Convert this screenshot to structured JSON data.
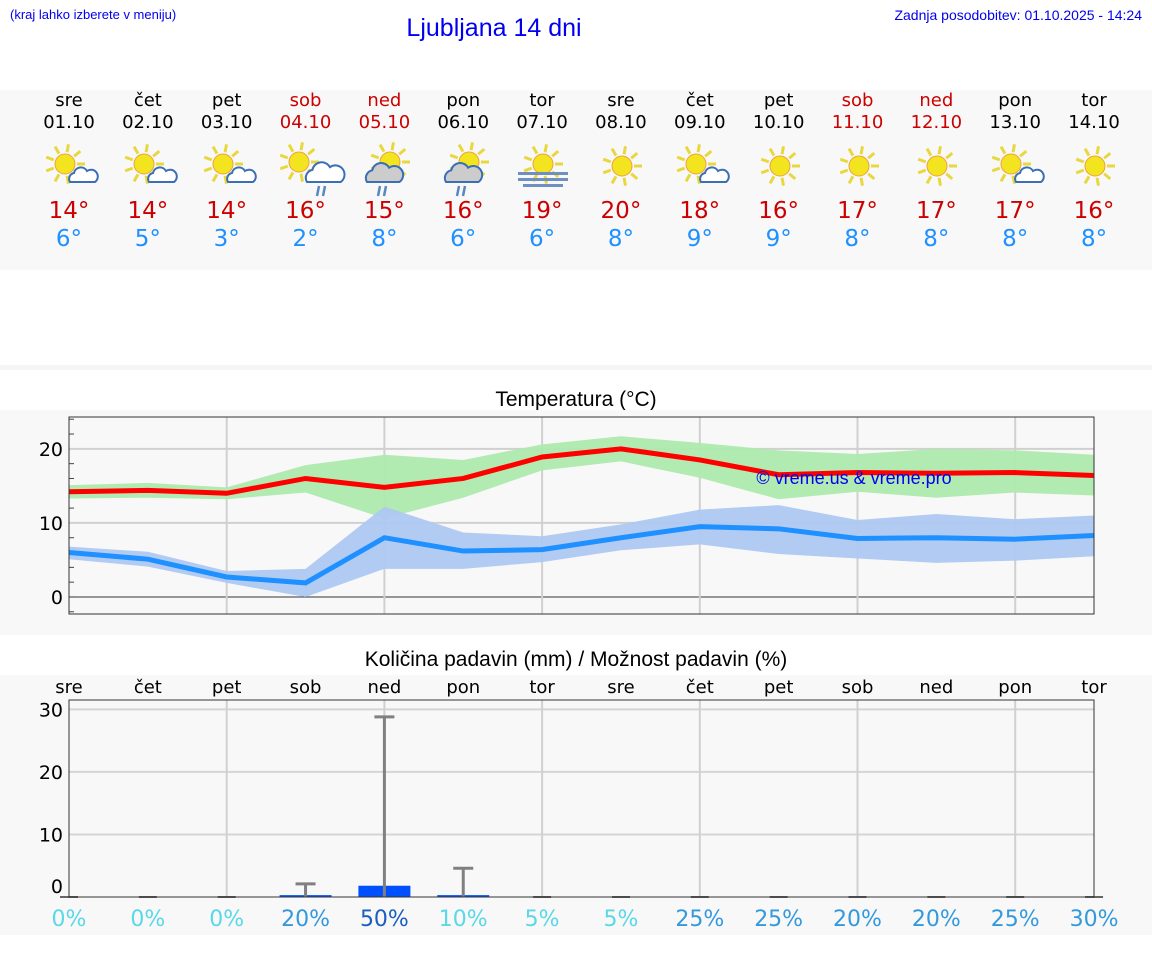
{
  "header": {
    "hint": "(kraj lahko izberete v meniju)",
    "title": "Ljubljana 14 dni",
    "updated": "Zadnja posodobitev: 01.10.2025 - 14:24"
  },
  "colors": {
    "max": "#cc0000",
    "min": "#1e90ff",
    "weekend": "#cc0000",
    "link": "#0000ee",
    "max_band": "#aeeaad",
    "min_band": "#aec8f2",
    "max_line": "#ff0000",
    "min_line": "#1e90ff",
    "precip_bar": "#0050ff",
    "precip_range": "#808080"
  },
  "days": [
    {
      "name": "sre",
      "date": "01.10",
      "weekend": false,
      "icon": "sun-cloud",
      "max": "14°",
      "min": "6°"
    },
    {
      "name": "čet",
      "date": "02.10",
      "weekend": false,
      "icon": "sun-cloud",
      "max": "14°",
      "min": "5°"
    },
    {
      "name": "pet",
      "date": "03.10",
      "weekend": false,
      "icon": "sun-cloud",
      "max": "14°",
      "min": "3°"
    },
    {
      "name": "sob",
      "date": "04.10",
      "weekend": true,
      "icon": "sun-cloud-rain",
      "max": "16°",
      "min": "2°"
    },
    {
      "name": "ned",
      "date": "05.10",
      "weekend": true,
      "icon": "cloud-sun-rain",
      "max": "15°",
      "min": "8°"
    },
    {
      "name": "pon",
      "date": "06.10",
      "weekend": false,
      "icon": "cloud-sun-rain",
      "max": "16°",
      "min": "6°"
    },
    {
      "name": "tor",
      "date": "07.10",
      "weekend": false,
      "icon": "sun-fog",
      "max": "19°",
      "min": "6°"
    },
    {
      "name": "sre",
      "date": "08.10",
      "weekend": false,
      "icon": "sun",
      "max": "20°",
      "min": "8°"
    },
    {
      "name": "čet",
      "date": "09.10",
      "weekend": false,
      "icon": "sun-cloud",
      "max": "18°",
      "min": "9°"
    },
    {
      "name": "pet",
      "date": "10.10",
      "weekend": false,
      "icon": "sun",
      "max": "16°",
      "min": "9°"
    },
    {
      "name": "sob",
      "date": "11.10",
      "weekend": true,
      "icon": "sun",
      "max": "17°",
      "min": "8°"
    },
    {
      "name": "ned",
      "date": "12.10",
      "weekend": true,
      "icon": "sun",
      "max": "17°",
      "min": "8°"
    },
    {
      "name": "pon",
      "date": "13.10",
      "weekend": false,
      "icon": "sun-cloud",
      "max": "17°",
      "min": "8°"
    },
    {
      "name": "tor",
      "date": "14.10",
      "weekend": false,
      "icon": "sun",
      "max": "16°",
      "min": "8°"
    }
  ],
  "chart_data": [
    {
      "type": "line",
      "title": "Temperatura (°C)",
      "watermark": "© vreme.us & vreme.pro",
      "x": [
        "01.10",
        "02.10",
        "03.10",
        "04.10",
        "05.10",
        "06.10",
        "07.10",
        "08.10",
        "09.10",
        "10.10",
        "11.10",
        "12.10",
        "13.10",
        "14.10"
      ],
      "yticks": [
        0,
        10,
        20
      ],
      "ylim": [
        -2.3,
        24.3
      ],
      "grid": true,
      "series": [
        {
          "key": "max",
          "values": [
            14.2,
            14.4,
            14.0,
            16.0,
            14.8,
            16.0,
            18.9,
            20.0,
            18.5,
            16.5,
            16.8,
            16.7,
            16.8,
            16.4
          ],
          "band_high": [
            15.1,
            15.4,
            14.8,
            17.8,
            19.2,
            18.5,
            20.6,
            21.7,
            20.8,
            19.8,
            19.3,
            20.0,
            19.8,
            19.2
          ],
          "band_low": [
            13.3,
            13.4,
            13.2,
            14.1,
            10.6,
            13.4,
            17.1,
            18.3,
            16.1,
            13.2,
            14.2,
            13.4,
            14.1,
            13.7
          ]
        },
        {
          "key": "min",
          "values": [
            6.0,
            5.1,
            2.7,
            1.9,
            8.0,
            6.2,
            6.4,
            8.0,
            9.5,
            9.2,
            7.9,
            8.0,
            7.8,
            8.3
          ],
          "band_high": [
            6.8,
            6.1,
            3.5,
            3.8,
            12.2,
            8.7,
            8.2,
            9.8,
            11.8,
            12.4,
            10.4,
            11.2,
            10.5,
            11.0
          ],
          "band_low": [
            5.1,
            4.1,
            1.9,
            0.0,
            3.8,
            3.8,
            4.7,
            6.3,
            7.1,
            5.8,
            5.2,
            4.6,
            4.9,
            5.5
          ]
        }
      ]
    },
    {
      "type": "bar",
      "title": "Količina padavin (mm) / Možnost padavin (%)",
      "categories": [
        "sre",
        "čet",
        "pet",
        "sob",
        "ned",
        "pon",
        "tor",
        "sre",
        "čet",
        "pet",
        "sob",
        "ned",
        "pon",
        "tor"
      ],
      "yticks": [
        0,
        10,
        20,
        30
      ],
      "ylim": [
        0,
        31.5
      ],
      "grid": true,
      "values": [
        0,
        0,
        0,
        0.3,
        1.8,
        0.3,
        0,
        0,
        0,
        0,
        0,
        0,
        0,
        0
      ],
      "range_max": [
        0,
        0,
        0,
        2.1,
        28.8,
        4.6,
        0,
        0,
        0,
        0,
        0,
        0,
        0,
        0
      ],
      "probability": [
        "0%",
        "0%",
        "0%",
        "20%",
        "50%",
        "10%",
        "5%",
        "5%",
        "25%",
        "25%",
        "20%",
        "20%",
        "25%",
        "30%"
      ]
    }
  ]
}
